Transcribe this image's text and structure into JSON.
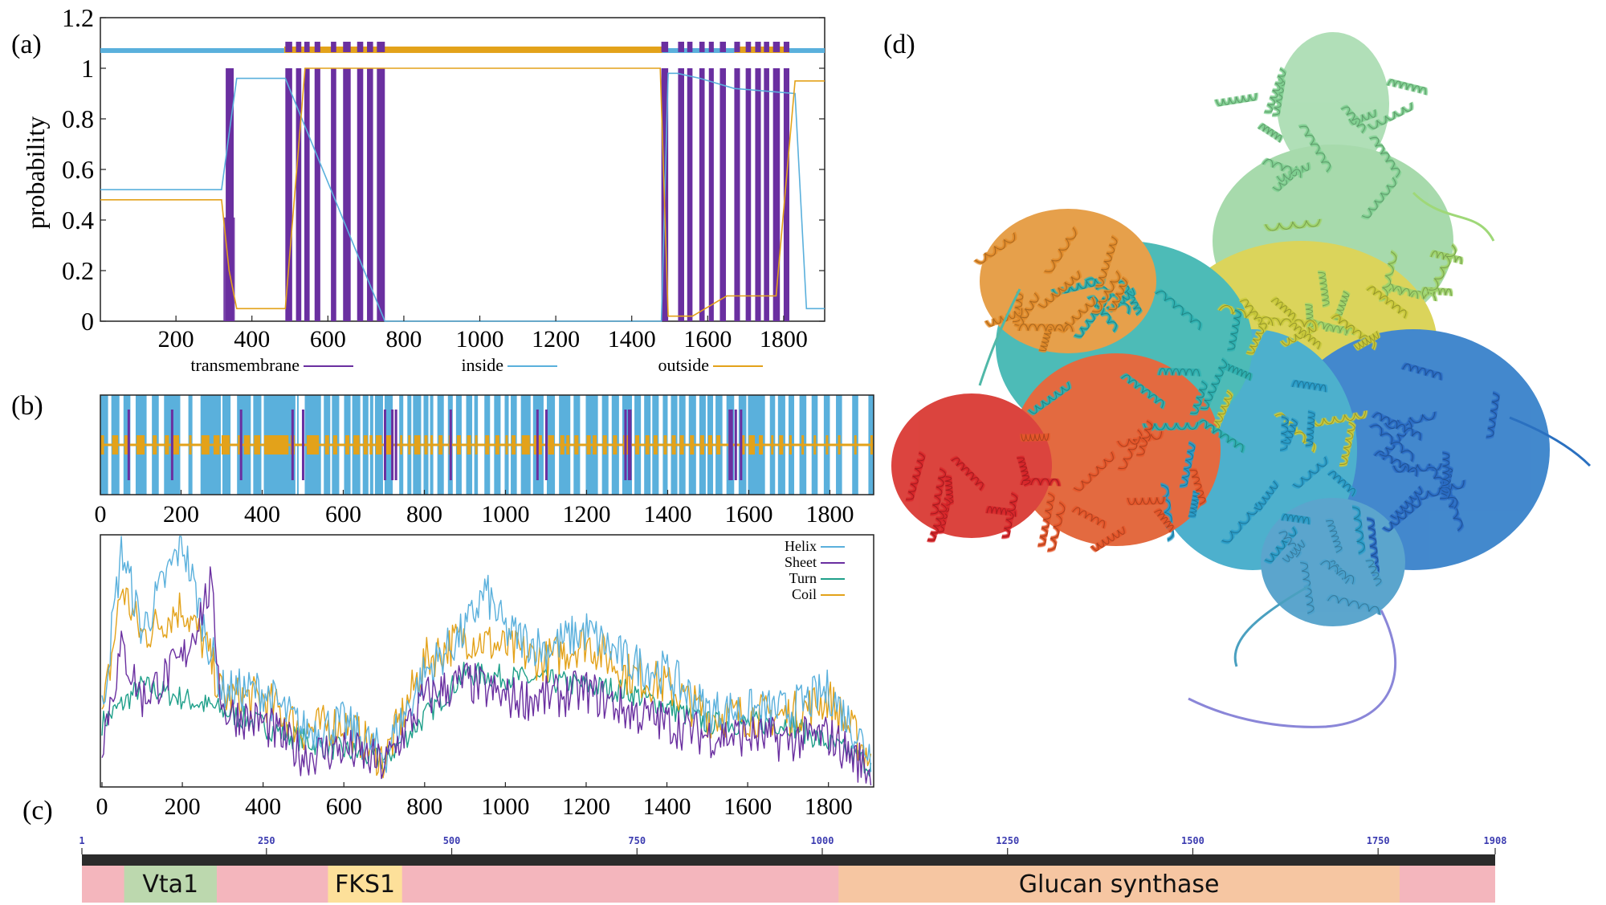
{
  "panels": {
    "a": {
      "label": "(a)"
    },
    "b": {
      "label": "(b)"
    },
    "c": {
      "label": "(c)"
    },
    "d": {
      "label": "(d)"
    }
  },
  "colors": {
    "transmembrane": "#6a2fa0",
    "inside": "#5ab0dc",
    "outside": "#e3a21a",
    "helix": "#5ab0dc",
    "sheet": "#6a2fa0",
    "turn": "#1fa08a",
    "coil": "#e3a21a",
    "domain_base": "#f4b6bd",
    "vta1": "#bcd8ae",
    "fks1": "#fde09a",
    "glucan": "#f6c6a2",
    "ruler_bar": "#2b2b2b",
    "ruler_text": "#3b3bb0"
  },
  "chart_data": [
    {
      "id": "a",
      "type": "line",
      "title": "",
      "xlabel": "",
      "ylabel": "probability",
      "xlim": [
        1,
        1908
      ],
      "ylim": [
        0,
        1.2
      ],
      "xticks": [
        "200",
        "400",
        "600",
        "800",
        "1000",
        "1200",
        "1400",
        "1600",
        "1800"
      ],
      "yticks": [
        "0",
        "0.2",
        "0.4",
        "0.6",
        "0.8",
        "1",
        "1.2"
      ],
      "legend": [
        "transmembrane",
        "inside",
        "outside"
      ],
      "tm_segments": [
        [
          331,
          352
        ],
        [
          488,
          506
        ],
        [
          516,
          530
        ],
        [
          538,
          552
        ],
        [
          565,
          580
        ],
        [
          608,
          622
        ],
        [
          640,
          660
        ],
        [
          677,
          693
        ],
        [
          703,
          719
        ],
        [
          729,
          750
        ],
        [
          1478,
          1496
        ],
        [
          1522,
          1538
        ],
        [
          1546,
          1560
        ],
        [
          1578,
          1592
        ],
        [
          1603,
          1616
        ],
        [
          1632,
          1648
        ],
        [
          1670,
          1685
        ],
        [
          1700,
          1714
        ],
        [
          1725,
          1740
        ],
        [
          1748,
          1762
        ],
        [
          1772,
          1790
        ],
        [
          1800,
          1815
        ]
      ],
      "tm_small": [
        [
          325,
          355,
          0.41
        ]
      ],
      "series": [
        {
          "name": "inside",
          "x": [
            1,
            320,
            338,
            360,
            488,
            750,
            1478,
            1496,
            1520,
            1580,
            1670,
            1830,
            1860,
            1908
          ],
          "values": [
            0.52,
            0.52,
            0.72,
            0.96,
            0.96,
            0.0,
            0.0,
            0.98,
            0.98,
            0.96,
            0.92,
            0.9,
            0.05,
            0.05
          ]
        },
        {
          "name": "outside",
          "x": [
            1,
            320,
            340,
            360,
            380,
            488,
            540,
            750,
            1475,
            1496,
            1560,
            1650,
            1780,
            1830,
            1850,
            1908
          ],
          "values": [
            0.48,
            0.48,
            0.2,
            0.05,
            0.05,
            0.05,
            1.0,
            1.0,
            1.0,
            0.02,
            0.02,
            0.1,
            0.1,
            0.95,
            0.95,
            0.95
          ]
        }
      ],
      "topology_bar": {
        "y": 1.07,
        "inside_ranges": [
          [
            1,
            485
          ],
          [
            1480,
            1670
          ],
          [
            1815,
            1908
          ]
        ],
        "outside_ranges": [
          [
            485,
            1480
          ],
          [
            1670,
            1815
          ]
        ]
      }
    },
    {
      "id": "b-top",
      "type": "heatmap",
      "title": "",
      "xlim": [
        1,
        1908
      ],
      "xticks": [
        "0",
        "200",
        "400",
        "600",
        "800",
        "1000",
        "1200",
        "1400",
        "1600",
        "1800"
      ],
      "background": "helix",
      "coil_blocks": [
        [
          1,
          10
        ],
        [
          30,
          45
        ],
        [
          60,
          70
        ],
        [
          90,
          110
        ],
        [
          130,
          140
        ],
        [
          160,
          170
        ],
        [
          175,
          195
        ],
        [
          220,
          225
        ],
        [
          250,
          270
        ],
        [
          280,
          295
        ],
        [
          300,
          320
        ],
        [
          340,
          345
        ],
        [
          355,
          370
        ],
        [
          380,
          395
        ],
        [
          405,
          465
        ],
        [
          470,
          480
        ],
        [
          510,
          540
        ],
        [
          555,
          565
        ],
        [
          575,
          585
        ],
        [
          605,
          615
        ],
        [
          625,
          640
        ],
        [
          650,
          660
        ],
        [
          665,
          672
        ],
        [
          680,
          695
        ],
        [
          700,
          720
        ],
        [
          740,
          745
        ],
        [
          760,
          765
        ],
        [
          775,
          790
        ],
        [
          800,
          808
        ],
        [
          815,
          820
        ],
        [
          835,
          845
        ],
        [
          860,
          868
        ],
        [
          880,
          890
        ],
        [
          905,
          915
        ],
        [
          925,
          930
        ],
        [
          950,
          960
        ],
        [
          975,
          985
        ],
        [
          1000,
          1005
        ],
        [
          1015,
          1025
        ],
        [
          1040,
          1060
        ],
        [
          1070,
          1090
        ],
        [
          1105,
          1120
        ],
        [
          1135,
          1145
        ],
        [
          1150,
          1158
        ],
        [
          1170,
          1180
        ],
        [
          1200,
          1210
        ],
        [
          1215,
          1225
        ],
        [
          1240,
          1250
        ],
        [
          1265,
          1275
        ],
        [
          1290,
          1310
        ],
        [
          1320,
          1330
        ],
        [
          1345,
          1355
        ],
        [
          1365,
          1375
        ],
        [
          1390,
          1398
        ],
        [
          1410,
          1420
        ],
        [
          1430,
          1440
        ],
        [
          1455,
          1465
        ],
        [
          1480,
          1490
        ],
        [
          1500,
          1510
        ],
        [
          1520,
          1530
        ],
        [
          1550,
          1560
        ],
        [
          1580,
          1590
        ],
        [
          1600,
          1615
        ],
        [
          1625,
          1635
        ],
        [
          1655,
          1660
        ],
        [
          1675,
          1685
        ],
        [
          1700,
          1706
        ],
        [
          1730,
          1735
        ],
        [
          1760,
          1766
        ],
        [
          1790,
          1795
        ],
        [
          1820,
          1825
        ],
        [
          1860,
          1865
        ],
        [
          1900,
          1905
        ]
      ],
      "gap_blocks": [
        [
          20,
          28
        ],
        [
          48,
          58
        ],
        [
          75,
          88
        ],
        [
          115,
          128
        ],
        [
          145,
          158
        ],
        [
          198,
          218
        ],
        [
          228,
          248
        ],
        [
          298,
          300
        ],
        [
          322,
          338
        ],
        [
          372,
          378
        ],
        [
          398,
          404
        ],
        [
          482,
          486
        ],
        [
          490,
          505
        ],
        [
          545,
          552
        ],
        [
          568,
          572
        ],
        [
          590,
          602
        ],
        [
          618,
          622
        ],
        [
          642,
          648
        ],
        [
          662,
          664
        ],
        [
          674,
          678
        ],
        [
          698,
          700
        ],
        [
          722,
          738
        ],
        [
          748,
          758
        ],
        [
          768,
          772
        ],
        [
          792,
          798
        ],
        [
          810,
          813
        ],
        [
          822,
          832
        ],
        [
          848,
          858
        ],
        [
          870,
          878
        ],
        [
          892,
          903
        ],
        [
          918,
          923
        ],
        [
          932,
          948
        ],
        [
          962,
          972
        ],
        [
          988,
          998
        ],
        [
          1008,
          1013
        ],
        [
          1028,
          1038
        ],
        [
          1062,
          1068
        ],
        [
          1094,
          1102
        ],
        [
          1122,
          1132
        ],
        [
          1160,
          1168
        ],
        [
          1184,
          1198
        ],
        [
          1228,
          1238
        ],
        [
          1254,
          1262
        ],
        [
          1280,
          1288
        ],
        [
          1312,
          1318
        ],
        [
          1334,
          1342
        ],
        [
          1358,
          1362
        ],
        [
          1378,
          1388
        ],
        [
          1400,
          1408
        ],
        [
          1424,
          1428
        ],
        [
          1444,
          1452
        ],
        [
          1470,
          1478
        ],
        [
          1494,
          1498
        ],
        [
          1512,
          1518
        ],
        [
          1535,
          1545
        ],
        [
          1564,
          1575
        ],
        [
          1594,
          1598
        ],
        [
          1640,
          1652
        ],
        [
          1665,
          1672
        ],
        [
          1690,
          1698
        ],
        [
          1712,
          1725
        ],
        [
          1742,
          1755
        ],
        [
          1770,
          1785
        ],
        [
          1800,
          1815
        ],
        [
          1830,
          1855
        ],
        [
          1870,
          1895
        ]
      ],
      "sheet_blocks": [
        [
          68,
          72
        ],
        [
          175,
          180
        ],
        [
          345,
          350
        ],
        [
          472,
          478
        ],
        [
          498,
          503
        ],
        [
          700,
          705
        ],
        [
          718,
          724
        ],
        [
          727,
          733
        ],
        [
          862,
          866
        ],
        [
          1076,
          1080
        ],
        [
          1098,
          1102
        ],
        [
          1293,
          1297
        ],
        [
          1302,
          1306
        ],
        [
          1305,
          1309
        ],
        [
          1550,
          1554
        ],
        [
          1555,
          1559
        ],
        [
          1565,
          1569
        ],
        [
          1578,
          1582
        ]
      ]
    },
    {
      "id": "b-bottom",
      "type": "line",
      "title": "",
      "xlim": [
        1,
        1908
      ],
      "xticks": [
        "0",
        "200",
        "400",
        "600",
        "800",
        "1000",
        "1200",
        "1400",
        "1600",
        "1800"
      ],
      "legend": [
        "Helix",
        "Sheet",
        "Turn",
        "Coil"
      ],
      "series": [
        {
          "name": "Helix",
          "profile": [
            [
              1,
              0.3
            ],
            [
              50,
              0.95
            ],
            [
              100,
              0.62
            ],
            [
              200,
              0.98
            ],
            [
              260,
              0.6
            ],
            [
              300,
              0.38
            ],
            [
              400,
              0.38
            ],
            [
              500,
              0.22
            ],
            [
              600,
              0.25
            ],
            [
              700,
              0.12
            ],
            [
              800,
              0.45
            ],
            [
              900,
              0.62
            ],
            [
              950,
              0.78
            ],
            [
              1000,
              0.62
            ],
            [
              1100,
              0.55
            ],
            [
              1200,
              0.62
            ],
            [
              1300,
              0.5
            ],
            [
              1400,
              0.45
            ],
            [
              1500,
              0.3
            ],
            [
              1600,
              0.3
            ],
            [
              1700,
              0.3
            ],
            [
              1800,
              0.38
            ],
            [
              1908,
              0.12
            ]
          ]
        },
        {
          "name": "Sheet",
          "profile": [
            [
              1,
              0.18
            ],
            [
              50,
              0.55
            ],
            [
              100,
              0.35
            ],
            [
              200,
              0.5
            ],
            [
              270,
              0.8
            ],
            [
              300,
              0.3
            ],
            [
              400,
              0.25
            ],
            [
              500,
              0.12
            ],
            [
              600,
              0.15
            ],
            [
              700,
              0.08
            ],
            [
              800,
              0.35
            ],
            [
              900,
              0.42
            ],
            [
              1000,
              0.35
            ],
            [
              1100,
              0.35
            ],
            [
              1200,
              0.38
            ],
            [
              1300,
              0.3
            ],
            [
              1400,
              0.25
            ],
            [
              1500,
              0.2
            ],
            [
              1600,
              0.2
            ],
            [
              1700,
              0.18
            ],
            [
              1800,
              0.2
            ],
            [
              1908,
              0.05
            ]
          ]
        },
        {
          "name": "Turn",
          "profile": [
            [
              1,
              0.25
            ],
            [
              100,
              0.4
            ],
            [
              300,
              0.3
            ],
            [
              500,
              0.18
            ],
            [
              700,
              0.1
            ],
            [
              900,
              0.45
            ],
            [
              1100,
              0.42
            ],
            [
              1300,
              0.38
            ],
            [
              1500,
              0.25
            ],
            [
              1700,
              0.25
            ],
            [
              1908,
              0.08
            ]
          ]
        },
        {
          "name": "Coil",
          "profile": [
            [
              1,
              0.25
            ],
            [
              50,
              0.8
            ],
            [
              100,
              0.6
            ],
            [
              200,
              0.72
            ],
            [
              260,
              0.55
            ],
            [
              300,
              0.35
            ],
            [
              400,
              0.35
            ],
            [
              500,
              0.22
            ],
            [
              600,
              0.25
            ],
            [
              700,
              0.1
            ],
            [
              800,
              0.5
            ],
            [
              900,
              0.6
            ],
            [
              1000,
              0.55
            ],
            [
              1100,
              0.5
            ],
            [
              1200,
              0.58
            ],
            [
              1300,
              0.45
            ],
            [
              1400,
              0.4
            ],
            [
              1500,
              0.28
            ],
            [
              1600,
              0.28
            ],
            [
              1700,
              0.28
            ],
            [
              1800,
              0.35
            ],
            [
              1908,
              0.1
            ]
          ]
        }
      ]
    },
    {
      "id": "c",
      "type": "bar",
      "title": "",
      "xlim": [
        1,
        1908
      ],
      "ruler_ticks": [
        "1",
        "250",
        "500",
        "750",
        "1000",
        "1250",
        "1500",
        "1750",
        "1908"
      ],
      "domains": [
        {
          "name": "Vta1",
          "start": 58,
          "end": 183
        },
        {
          "name": "FKS1",
          "start": 333,
          "end": 433
        },
        {
          "name": "Glucan synthase",
          "start": 1022,
          "end": 1779
        }
      ]
    }
  ],
  "protein_model": {
    "description_label": ""
  }
}
